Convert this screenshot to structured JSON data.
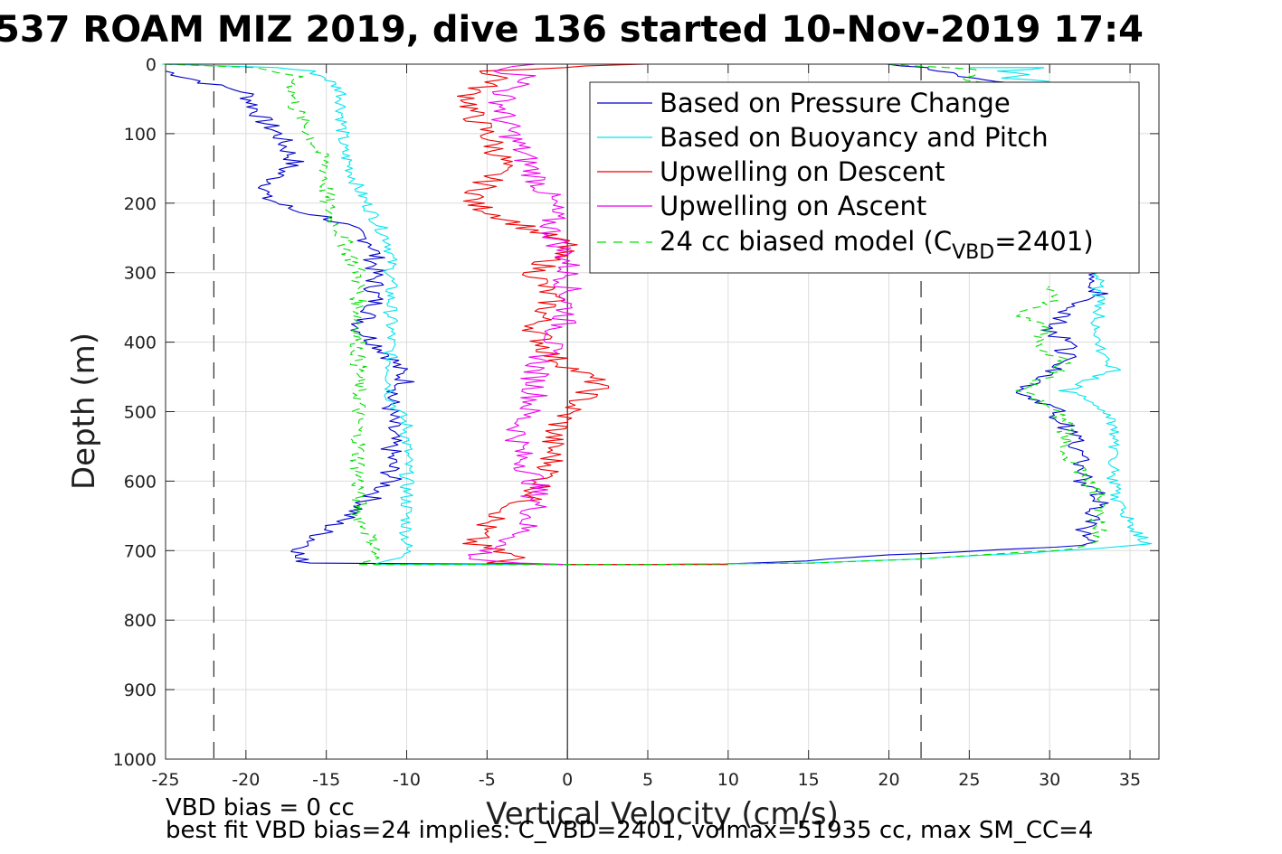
{
  "chart_data": {
    "type": "line",
    "title": "537 ROAM MIZ 2019, dive 136 started 10-Nov-2019 17:4",
    "xlabel": "Vertical Velocity (cm/s)",
    "ylabel": "Depth (m)",
    "xlim": [
      -25,
      37
    ],
    "ylim": [
      0,
      1000
    ],
    "y_reversed": true,
    "grid": true,
    "legend_position": "top-right",
    "xticks": [
      -25,
      -20,
      -15,
      -10,
      -5,
      0,
      5,
      10,
      15,
      20,
      25,
      30,
      35
    ],
    "yticks": [
      0,
      100,
      200,
      300,
      400,
      500,
      600,
      700,
      800,
      900,
      1000
    ],
    "reference_lines": [
      {
        "axis": "x",
        "value": 0,
        "style": "solid",
        "color": "#000000"
      },
      {
        "axis": "x",
        "value": -22,
        "style": "dashed",
        "color": "#000000"
      },
      {
        "axis": "x",
        "value": 22,
        "style": "dashed",
        "color": "#000000"
      }
    ],
    "series": [
      {
        "name": "Based on Pressure Change",
        "color": "#0000cc",
        "dash": false,
        "jitter": 0.7,
        "segments": [
          [
            [
              -25,
              10
            ],
            [
              -22,
              30
            ],
            [
              -20,
              40
            ],
            [
              -19,
              80
            ],
            [
              -18,
              100
            ],
            [
              -17,
              140
            ],
            [
              -18,
              160
            ],
            [
              -19,
              190
            ],
            [
              -17,
              210
            ],
            [
              -15,
              220
            ],
            [
              -14,
              230
            ],
            [
              -12,
              260
            ],
            [
              -12,
              300
            ],
            [
              -12,
              350
            ],
            [
              -13,
              380
            ],
            [
              -12,
              400
            ],
            [
              -11,
              420
            ],
            [
              -10,
              460
            ],
            [
              -11,
              480
            ],
            [
              -11,
              520
            ],
            [
              -11,
              560
            ],
            [
              -11,
              600
            ],
            [
              -13,
              640
            ],
            [
              -15,
              670
            ],
            [
              -16,
              690
            ],
            [
              -17,
              710
            ],
            [
              -16,
              718
            ],
            [
              0,
              720
            ],
            [
              5,
              720
            ],
            [
              10,
              719
            ],
            [
              15,
              715
            ],
            [
              20,
              706
            ],
            [
              25,
              702
            ],
            [
              30,
              695
            ],
            [
              33,
              690
            ],
            [
              32,
              670
            ],
            [
              33,
              640
            ],
            [
              33,
              620
            ],
            [
              32,
              600
            ],
            [
              32,
              560
            ],
            [
              31,
              520
            ],
            [
              30,
              490
            ],
            [
              28,
              470
            ],
            [
              30,
              450
            ],
            [
              31,
              430
            ],
            [
              31,
              400
            ],
            [
              30,
              380
            ],
            [
              31,
              360
            ],
            [
              33,
              330
            ],
            [
              33,
              300
            ]
          ],
          [
            [
              14,
              0
            ],
            [
              20,
              0
            ],
            [
              22,
              5
            ],
            [
              23,
              10
            ],
            [
              24,
              15
            ],
            [
              25,
              20
            ],
            [
              27,
              25
            ],
            [
              28,
              30
            ]
          ]
        ]
      },
      {
        "name": "Based on Buoyancy and Pitch",
        "color": "#00e5ee",
        "dash": false,
        "jitter": 0.45,
        "segments": [
          [
            [
              -25,
              0
            ],
            [
              -18,
              5
            ],
            [
              -16,
              10
            ],
            [
              -15,
              20
            ],
            [
              -14,
              40
            ],
            [
              -14,
              80
            ],
            [
              -14,
              120
            ],
            [
              -13,
              180
            ],
            [
              -12,
              220
            ],
            [
              -11,
              260
            ],
            [
              -11,
              300
            ],
            [
              -11,
              360
            ],
            [
              -11,
              400
            ],
            [
              -11,
              440
            ],
            [
              -11,
              480
            ],
            [
              -10,
              520
            ],
            [
              -10,
              560
            ],
            [
              -10,
              600
            ],
            [
              -10,
              650
            ],
            [
              -10,
              690
            ],
            [
              -10,
              710
            ],
            [
              -12,
              720
            ],
            [
              -5,
              720
            ],
            [
              5,
              720
            ],
            [
              15,
              718
            ],
            [
              22,
              712
            ],
            [
              28,
              704
            ],
            [
              33,
              697
            ],
            [
              36,
              690
            ],
            [
              35,
              660
            ],
            [
              34,
              620
            ],
            [
              34,
              560
            ],
            [
              34,
              520
            ],
            [
              33,
              490
            ],
            [
              31,
              470
            ],
            [
              34,
              440
            ],
            [
              33,
              400
            ],
            [
              33,
              360
            ],
            [
              33,
              320
            ],
            [
              33,
              300
            ]
          ],
          [
            [
              25,
              5
            ],
            [
              30,
              5
            ],
            [
              27,
              10
            ],
            [
              29,
              15
            ],
            [
              27,
              20
            ],
            [
              30,
              25
            ]
          ]
        ]
      },
      {
        "name": "Upwelling on Descent",
        "color": "#ee0000",
        "dash": false,
        "jitter": 0.9,
        "segments": [
          [
            [
              4,
              0
            ],
            [
              0,
              5
            ],
            [
              -5,
              10
            ],
            [
              -4,
              20
            ],
            [
              -6,
              40
            ],
            [
              -6,
              70
            ],
            [
              -5,
              100
            ],
            [
              -4,
              140
            ],
            [
              -5,
              170
            ],
            [
              -6,
              200
            ],
            [
              -3,
              230
            ],
            [
              0,
              260
            ],
            [
              -2,
              300
            ],
            [
              -1,
              340
            ],
            [
              -2,
              380
            ],
            [
              -1,
              420
            ],
            [
              2,
              460
            ],
            [
              0,
              500
            ],
            [
              -1,
              540
            ],
            [
              -1,
              580
            ],
            [
              -2,
              620
            ],
            [
              -5,
              660
            ],
            [
              -6,
              690
            ],
            [
              -3,
              710
            ],
            [
              -5,
              718
            ],
            [
              0,
              720
            ],
            [
              10,
              720
            ]
          ]
        ]
      },
      {
        "name": "Upwelling on Ascent",
        "color": "#ee00ee",
        "dash": false,
        "jitter": 0.9,
        "segments": [
          [
            [
              -2,
              0
            ],
            [
              -4,
              10
            ],
            [
              -2,
              20
            ],
            [
              -4,
              40
            ],
            [
              -4,
              80
            ],
            [
              -3,
              120
            ],
            [
              -2,
              160
            ],
            [
              -1,
              200
            ],
            [
              -1,
              240
            ],
            [
              0,
              280
            ],
            [
              0,
              320
            ],
            [
              0,
              360
            ],
            [
              -1,
              400
            ],
            [
              -2,
              440
            ],
            [
              -2,
              480
            ],
            [
              -3,
              520
            ],
            [
              -3,
              560
            ],
            [
              -2,
              600
            ],
            [
              -2,
              640
            ],
            [
              -3,
              680
            ],
            [
              -5,
              700
            ],
            [
              -6,
              712
            ],
            [
              -3,
              718
            ],
            [
              0,
              720
            ]
          ]
        ]
      },
      {
        "name": "24 cc biased model (C_VBD=2401)",
        "color": "#00dd00",
        "dash": true,
        "jitter": 0.55,
        "segments": [
          [
            [
              -25,
              0
            ],
            [
              -20,
              5
            ],
            [
              -17,
              15
            ],
            [
              -17,
              30
            ],
            [
              -17,
              60
            ],
            [
              -16,
              100
            ],
            [
              -15,
              150
            ],
            [
              -15,
              200
            ],
            [
              -14,
              250
            ],
            [
              -13,
              300
            ],
            [
              -13,
              350
            ],
            [
              -13,
              400
            ],
            [
              -13,
              450
            ],
            [
              -13,
              500
            ],
            [
              -13,
              550
            ],
            [
              -13,
              600
            ],
            [
              -13,
              650
            ],
            [
              -12,
              690
            ],
            [
              -12,
              710
            ],
            [
              -13,
              720
            ],
            [
              -5,
              720
            ],
            [
              5,
              720
            ],
            [
              15,
              718
            ],
            [
              22,
              712
            ],
            [
              27,
              705
            ],
            [
              32,
              697
            ],
            [
              33,
              680
            ],
            [
              33,
              650
            ],
            [
              33,
              620
            ],
            [
              32,
              590
            ],
            [
              31,
              560
            ],
            [
              31,
              520
            ],
            [
              30,
              490
            ],
            [
              28,
              470
            ],
            [
              30,
              450
            ],
            [
              31,
              430
            ],
            [
              29,
              400
            ],
            [
              30,
              380
            ],
            [
              28,
              360
            ],
            [
              30,
              340
            ],
            [
              30,
              320
            ]
          ],
          [
            [
              14,
              0
            ],
            [
              20,
              0
            ],
            [
              24,
              5
            ],
            [
              26,
              10
            ],
            [
              25,
              20
            ],
            [
              26,
              30
            ]
          ]
        ]
      }
    ],
    "legend": {
      "entries": [
        {
          "label": "Based on Pressure Change"
        },
        {
          "label": "Based on Buoyancy and Pitch"
        },
        {
          "label": "Upwelling on Descent"
        },
        {
          "label": "Upwelling on Ascent"
        },
        {
          "label_prefix": "24 cc biased model (C",
          "label_sub": "VBD",
          "label_suffix": "=2401)"
        }
      ]
    }
  },
  "footer": {
    "line1": "VBD bias = 0 cc",
    "line2": "best fit VBD bias=24 implies: C_VBD=2401, volmax=51935 cc, max SM_CC=4"
  }
}
